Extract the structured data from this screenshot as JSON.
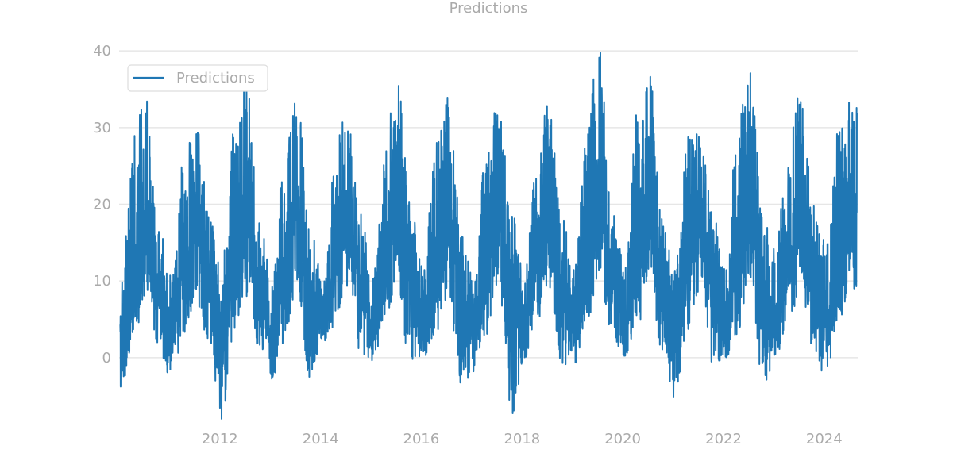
{
  "chart_data": {
    "type": "line",
    "title": "Predictions",
    "xlabel": "",
    "ylabel": "",
    "x_range": [
      "2010-01-01",
      "2024-08-31"
    ],
    "ylim": [
      -8.5,
      42.5
    ],
    "x_ticks": [
      "2012",
      "2014",
      "2016",
      "2018",
      "2020",
      "2022",
      "2024"
    ],
    "y_ticks": [
      0,
      10,
      20,
      30,
      40
    ],
    "grid": "horizontal",
    "legend": {
      "position": "top-left",
      "entries": [
        "Predictions"
      ]
    },
    "series": [
      {
        "name": "Predictions",
        "color": "#1f77b4",
        "x": [
          "2010-01",
          "2010-04",
          "2010-07",
          "2010-10",
          "2011-01",
          "2011-04",
          "2011-07",
          "2011-10",
          "2012-01",
          "2012-04",
          "2012-07",
          "2012-10",
          "2013-01",
          "2013-04",
          "2013-07",
          "2013-10",
          "2014-01",
          "2014-04",
          "2014-07",
          "2014-10",
          "2015-01",
          "2015-04",
          "2015-07",
          "2015-10",
          "2016-01",
          "2016-04",
          "2016-07",
          "2016-10",
          "2017-01",
          "2017-04",
          "2017-07",
          "2017-10",
          "2018-01",
          "2018-04",
          "2018-07",
          "2018-10",
          "2019-01",
          "2019-04",
          "2019-07",
          "2019-10",
          "2020-01",
          "2020-04",
          "2020-07",
          "2020-10",
          "2021-01",
          "2021-04",
          "2021-07",
          "2021-10",
          "2022-01",
          "2022-04",
          "2022-07",
          "2022-10",
          "2023-01",
          "2023-04",
          "2023-07",
          "2023-10",
          "2024-01",
          "2024-04",
          "2024-07"
        ],
        "y": [
          2,
          10,
          18,
          9,
          3,
          11,
          17,
          10,
          2,
          12,
          18,
          10,
          3,
          11,
          19,
          9,
          4,
          12,
          18,
          10,
          3,
          12,
          20,
          11,
          4,
          11,
          19,
          10,
          3,
          12,
          19,
          10,
          4,
          12,
          19,
          11,
          4,
          12,
          20,
          10,
          5,
          13,
          19,
          10,
          4,
          12,
          18,
          10,
          3,
          12,
          19,
          9,
          4,
          12,
          19,
          10,
          5,
          13,
          19
        ],
        "min": [
          -4,
          2,
          8,
          1,
          -3,
          3,
          7,
          2,
          -8,
          3,
          8,
          1,
          -3,
          2,
          9,
          -3,
          2,
          4,
          9,
          0,
          -0.5,
          5,
          9,
          -3,
          0,
          3,
          8,
          -4,
          -2,
          3,
          9,
          -8,
          -1,
          4,
          9,
          -1,
          -1,
          4,
          10,
          2,
          0,
          4,
          9,
          0,
          -6,
          3,
          9,
          -1,
          0,
          3,
          9,
          -4,
          0,
          4,
          9,
          1,
          -3,
          5,
          9
        ],
        "max": [
          10,
          30,
          34,
          17,
          11,
          26,
          31,
          19,
          12,
          30,
          36,
          18,
          10,
          27,
          35,
          17,
          11,
          29,
          32,
          19,
          11,
          30,
          36,
          20,
          12,
          28,
          34,
          19,
          10,
          27,
          34,
          20,
          11,
          27,
          36,
          21,
          12,
          31,
          41,
          20,
          12,
          33,
          38,
          19,
          12,
          29,
          30,
          19,
          12,
          31,
          39,
          20,
          14,
          29,
          35,
          20,
          15,
          30,
          34
        ]
      }
    ]
  }
}
